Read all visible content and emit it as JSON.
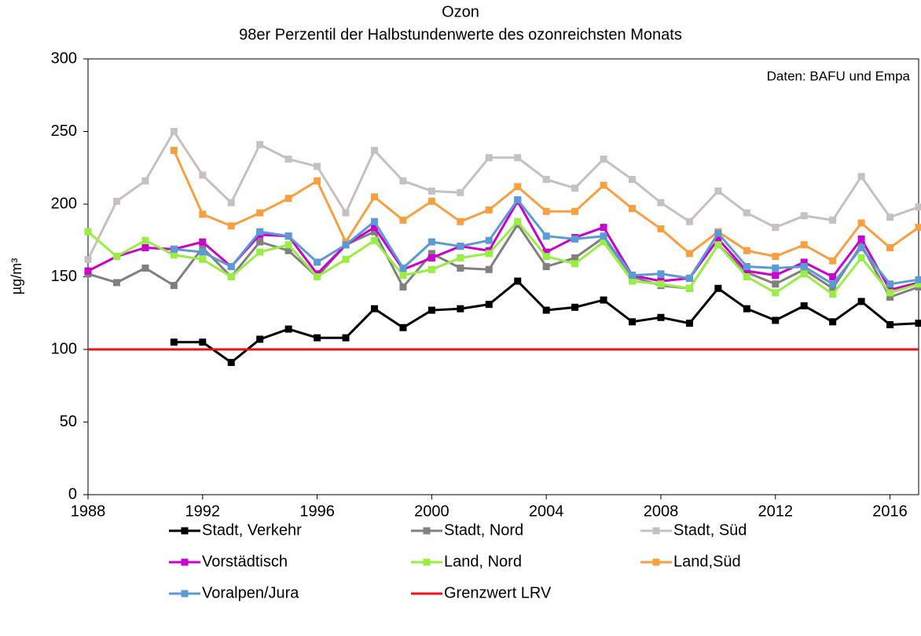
{
  "chart_data": {
    "type": "line",
    "title": "Ozon",
    "subtitle": "98er Perzentil der Halbstundenwerte des ozonreichsten Monats",
    "y_label": "µg/m³",
    "annotation": "Daten: BAFU und Empa",
    "x": [
      1988,
      1989,
      1990,
      1991,
      1992,
      1993,
      1994,
      1995,
      1996,
      1997,
      1998,
      1999,
      2000,
      2001,
      2002,
      2003,
      2004,
      2005,
      2006,
      2007,
      2008,
      2009,
      2010,
      2011,
      2012,
      2013,
      2014,
      2015,
      2016,
      2017
    ],
    "xlim": [
      1988,
      2017
    ],
    "xticks": [
      1988,
      1992,
      1996,
      2000,
      2004,
      2008,
      2012,
      2016
    ],
    "ylim": [
      0,
      300
    ],
    "yticks": [
      0,
      50,
      100,
      150,
      200,
      250,
      300
    ],
    "grid": false,
    "series": [
      {
        "name": "Stadt, Verkehr",
        "color": "#000000",
        "marker": true,
        "values": [
          null,
          null,
          null,
          105,
          105,
          91,
          107,
          114,
          108,
          108,
          128,
          115,
          127,
          128,
          131,
          147,
          127,
          129,
          134,
          119,
          122,
          118,
          142,
          128,
          120,
          130,
          119,
          133,
          117,
          118
        ]
      },
      {
        "name": "Stadt, Nord",
        "color": "#808080",
        "marker": true,
        "values": [
          152,
          146,
          156,
          144,
          170,
          150,
          174,
          168,
          150,
          172,
          181,
          143,
          166,
          156,
          155,
          186,
          157,
          163,
          177,
          150,
          144,
          142,
          172,
          153,
          145,
          155,
          142,
          172,
          136,
          143
        ]
      },
      {
        "name": "Stadt, Süd",
        "color": "#c8c0c0",
        "marker": true,
        "values": [
          162,
          202,
          216,
          250,
          220,
          201,
          241,
          231,
          226,
          194,
          237,
          216,
          209,
          208,
          232,
          232,
          217,
          211,
          231,
          217,
          201,
          188,
          209,
          194,
          184,
          192,
          189,
          219,
          191,
          198
        ]
      },
      {
        "name": "Vorstädtisch",
        "color": "#cc00cc",
        "marker": true,
        "values": [
          154,
          164,
          170,
          169,
          174,
          157,
          179,
          178,
          152,
          172,
          184,
          155,
          163,
          171,
          168,
          202,
          167,
          177,
          184,
          151,
          147,
          149,
          176,
          154,
          151,
          160,
          150,
          176,
          141,
          146
        ]
      },
      {
        "name": "Land, Nord",
        "color": "#99ee44",
        "marker": true,
        "values": [
          181,
          164,
          175,
          165,
          162,
          150,
          167,
          172,
          150,
          162,
          175,
          151,
          155,
          163,
          166,
          188,
          164,
          159,
          174,
          147,
          145,
          142,
          172,
          150,
          139,
          152,
          138,
          163,
          139,
          145
        ]
      },
      {
        "name": "Land,Süd",
        "color": "#f8a040",
        "marker": true,
        "values": [
          null,
          null,
          null,
          237,
          193,
          185,
          194,
          204,
          216,
          174,
          205,
          189,
          202,
          188,
          196,
          212,
          195,
          195,
          213,
          197,
          183,
          166,
          181,
          168,
          164,
          172,
          161,
          187,
          170,
          184
        ]
      },
      {
        "name": "Voralpen/Jura",
        "color": "#5b9bd5",
        "marker": true,
        "values": [
          null,
          null,
          null,
          169,
          167,
          157,
          181,
          178,
          160,
          172,
          188,
          156,
          174,
          171,
          175,
          203,
          178,
          176,
          178,
          151,
          152,
          149,
          180,
          157,
          156,
          157,
          145,
          170,
          145,
          148
        ]
      },
      {
        "name": "Grenzwert LRV",
        "color": "#ee1111",
        "marker": false,
        "values": [
          100,
          100,
          100,
          100,
          100,
          100,
          100,
          100,
          100,
          100,
          100,
          100,
          100,
          100,
          100,
          100,
          100,
          100,
          100,
          100,
          100,
          100,
          100,
          100,
          100,
          100,
          100,
          100,
          100,
          100
        ]
      }
    ]
  }
}
